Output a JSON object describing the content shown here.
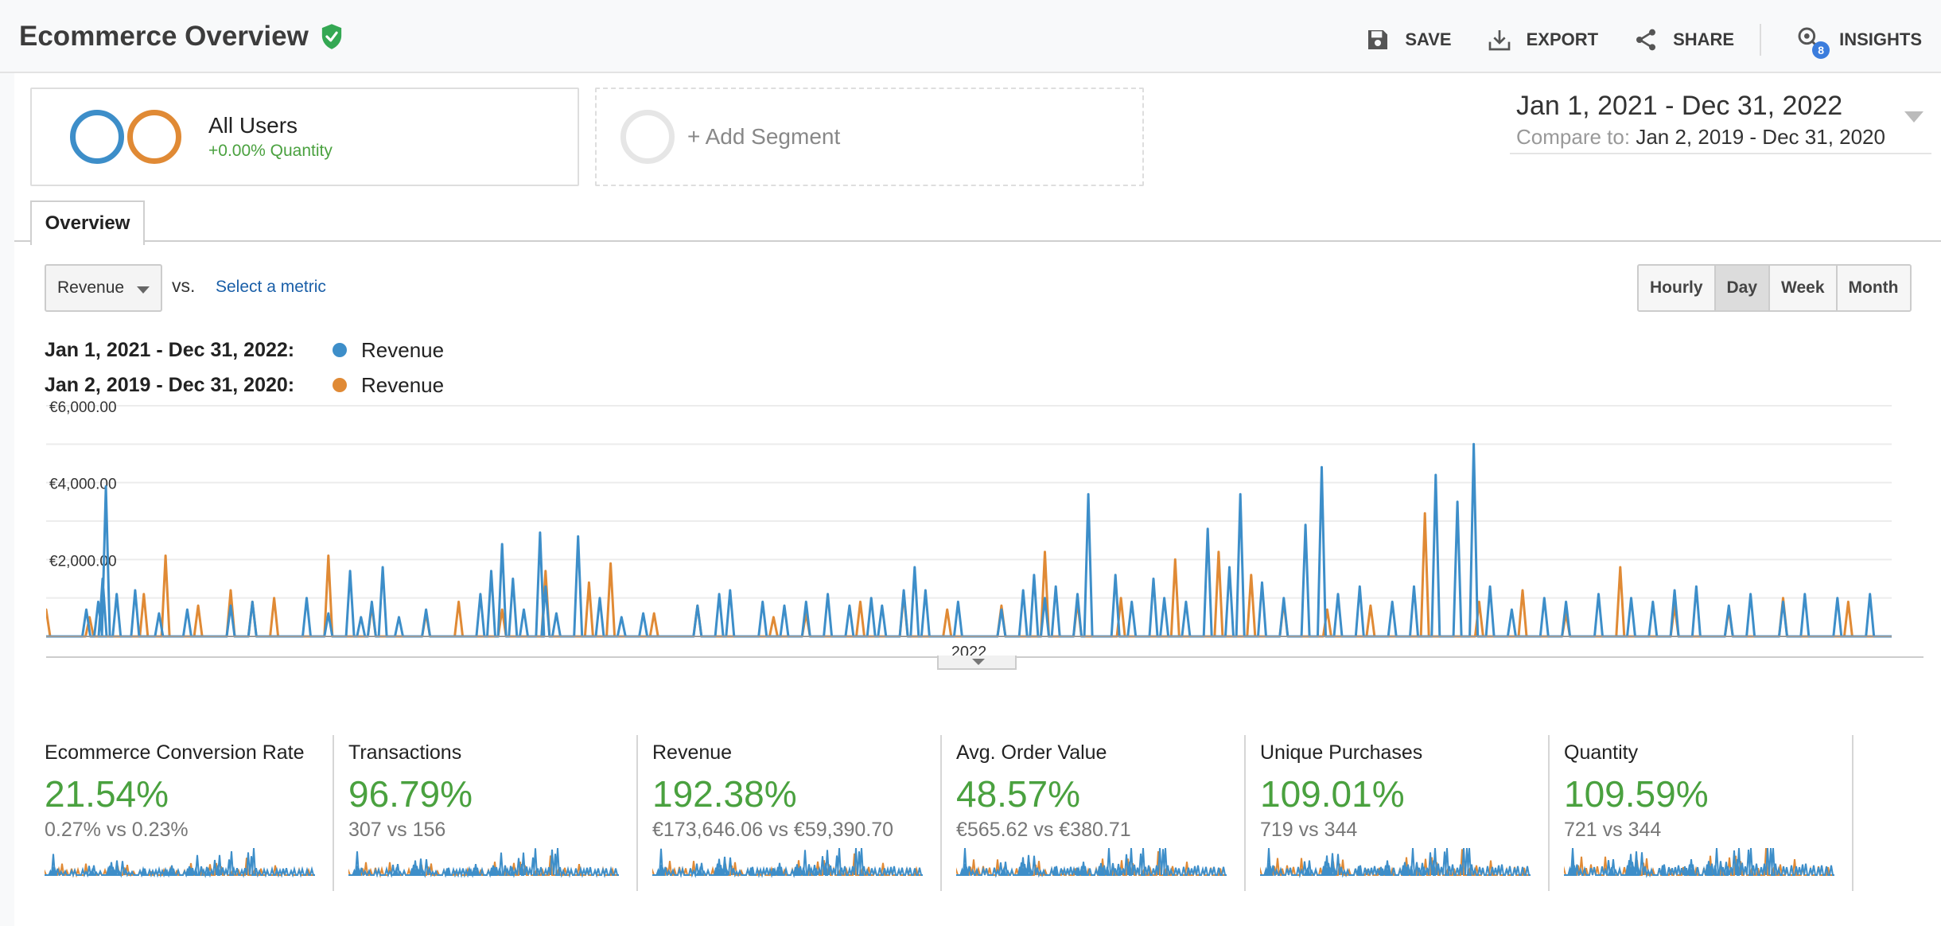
{
  "header": {
    "title": "Ecommerce Overview",
    "actions": [
      {
        "label": "SAVE",
        "icon": "save-icon"
      },
      {
        "label": "EXPORT",
        "icon": "export-icon"
      },
      {
        "label": "SHARE",
        "icon": "share-icon"
      },
      {
        "label": "INSIGHTS",
        "icon": "insights-icon",
        "badge": "8"
      }
    ]
  },
  "segments": {
    "active": {
      "name": "All Users",
      "sub": "+0.00% Quantity"
    },
    "add_label": "+ Add Segment"
  },
  "date_range": {
    "main": "Jan 1, 2021 - Dec 31, 2022",
    "compare_label": "Compare to:",
    "compare_value": "Jan 2, 2019 - Dec 31, 2020"
  },
  "tabs": [
    {
      "label": "Overview"
    }
  ],
  "controls": {
    "metric": "Revenue",
    "vs": "vs.",
    "select_metric": "Select a metric",
    "granularity": [
      "Hourly",
      "Day",
      "Week",
      "Month"
    ],
    "granularity_active": "Day"
  },
  "legend": [
    {
      "range": "Jan 1, 2021 - Dec 31, 2022:",
      "series": "Revenue",
      "color": "#3d8ec9"
    },
    {
      "range": "Jan 2, 2019 - Dec 31, 2020:",
      "series": "Revenue",
      "color": "#e08a35"
    }
  ],
  "colors": {
    "primary": "#3d8ec9",
    "compare": "#e08a35",
    "positive": "#4aa13f"
  },
  "chart_data": {
    "type": "line",
    "y_ticks": [
      "€6,000.00",
      "€4,000.00",
      "€2,000.00"
    ],
    "ylim": [
      0,
      6000
    ],
    "x_tick_labels": [
      "2022"
    ],
    "series": [
      {
        "name": "Revenue",
        "color": "#3d8ec9",
        "peaks": [
          [
            0.037,
            700
          ],
          [
            0.048,
            900
          ],
          [
            0.052,
            1500
          ],
          [
            0.055,
            3900
          ],
          [
            0.065,
            1100
          ],
          [
            0.082,
            1200
          ],
          [
            0.104,
            600
          ],
          [
            0.13,
            700
          ],
          [
            0.17,
            800
          ],
          [
            0.19,
            900
          ],
          [
            0.24,
            1000
          ],
          [
            0.26,
            600
          ],
          [
            0.28,
            1700
          ],
          [
            0.29,
            500
          ],
          [
            0.3,
            900
          ],
          [
            0.31,
            1800
          ],
          [
            0.325,
            500
          ],
          [
            0.35,
            700
          ],
          [
            0.4,
            1100
          ],
          [
            0.41,
            1700
          ],
          [
            0.42,
            2400
          ],
          [
            0.43,
            1500
          ],
          [
            0.44,
            700
          ],
          [
            0.455,
            2700
          ],
          [
            0.46,
            1300
          ],
          [
            0.47,
            600
          ],
          [
            0.49,
            2600
          ],
          [
            0.51,
            1000
          ],
          [
            0.53,
            500
          ],
          [
            0.55,
            600
          ],
          [
            0.6,
            800
          ],
          [
            0.62,
            1100
          ],
          [
            0.63,
            1200
          ],
          [
            0.66,
            900
          ],
          [
            0.68,
            800
          ],
          [
            0.7,
            900
          ],
          [
            0.72,
            1100
          ],
          [
            0.74,
            800
          ],
          [
            0.76,
            1000
          ],
          [
            0.77,
            800
          ],
          [
            0.79,
            1200
          ],
          [
            0.8,
            1800
          ],
          [
            0.81,
            1200
          ],
          [
            0.84,
            900
          ],
          [
            0.88,
            700
          ],
          [
            0.9,
            1200
          ],
          [
            0.91,
            1600
          ],
          [
            0.92,
            1000
          ],
          [
            0.93,
            1300
          ],
          [
            0.95,
            1100
          ],
          [
            0.96,
            3700
          ],
          [
            0.985,
            1600
          ],
          [
            1.0,
            900
          ],
          [
            1.02,
            1500
          ],
          [
            1.03,
            1000
          ],
          [
            1.05,
            900
          ],
          [
            1.07,
            2800
          ],
          [
            1.09,
            1800
          ],
          [
            1.1,
            3700
          ],
          [
            1.12,
            1400
          ],
          [
            1.14,
            1000
          ],
          [
            1.16,
            2900
          ],
          [
            1.175,
            4400
          ],
          [
            1.19,
            1100
          ],
          [
            1.21,
            1300
          ],
          [
            1.24,
            900
          ],
          [
            1.26,
            1300
          ],
          [
            1.28,
            4200
          ],
          [
            1.3,
            3500
          ],
          [
            1.315,
            5000
          ],
          [
            1.33,
            1300
          ],
          [
            1.35,
            700
          ],
          [
            1.38,
            1000
          ],
          [
            1.4,
            900
          ],
          [
            1.43,
            1100
          ],
          [
            1.46,
            1000
          ],
          [
            1.48,
            900
          ],
          [
            1.5,
            1200
          ],
          [
            1.52,
            1300
          ],
          [
            1.55,
            800
          ],
          [
            1.57,
            1100
          ],
          [
            1.6,
            900
          ],
          [
            1.62,
            1100
          ],
          [
            1.65,
            1000
          ],
          [
            1.68,
            1100
          ]
        ]
      },
      {
        "name": "Revenue",
        "color": "#e08a35",
        "peaks": [
          [
            0.0,
            700
          ],
          [
            0.04,
            500
          ],
          [
            0.09,
            1100
          ],
          [
            0.11,
            2100
          ],
          [
            0.14,
            800
          ],
          [
            0.17,
            1200
          ],
          [
            0.19,
            900
          ],
          [
            0.21,
            1000
          ],
          [
            0.26,
            2100
          ],
          [
            0.3,
            800
          ],
          [
            0.35,
            600
          ],
          [
            0.38,
            900
          ],
          [
            0.42,
            700
          ],
          [
            0.46,
            1700
          ],
          [
            0.5,
            1400
          ],
          [
            0.52,
            1900
          ],
          [
            0.56,
            600
          ],
          [
            0.6,
            800
          ],
          [
            0.67,
            500
          ],
          [
            0.7,
            600
          ],
          [
            0.75,
            900
          ],
          [
            0.79,
            1100
          ],
          [
            0.83,
            700
          ],
          [
            0.88,
            800
          ],
          [
            0.92,
            2200
          ],
          [
            0.95,
            900
          ],
          [
            0.99,
            1000
          ],
          [
            1.04,
            2000
          ],
          [
            1.08,
            2200
          ],
          [
            1.11,
            1600
          ],
          [
            1.14,
            900
          ],
          [
            1.18,
            700
          ],
          [
            1.22,
            800
          ],
          [
            1.27,
            3200
          ],
          [
            1.32,
            900
          ],
          [
            1.36,
            1200
          ],
          [
            1.4,
            600
          ],
          [
            1.45,
            1800
          ],
          [
            1.5,
            800
          ],
          [
            1.55,
            700
          ],
          [
            1.6,
            1000
          ],
          [
            1.66,
            900
          ]
        ]
      }
    ],
    "xdomain": [
      0,
      1.7
    ]
  },
  "summary_metrics": [
    {
      "title": "Ecommerce Conversion Rate",
      "pct": "21.54%",
      "compare": "0.27% vs 0.23%"
    },
    {
      "title": "Transactions",
      "pct": "96.79%",
      "compare": "307 vs 156"
    },
    {
      "title": "Revenue",
      "pct": "192.38%",
      "compare": "€173,646.06 vs €59,390.70"
    },
    {
      "title": "Avg. Order Value",
      "pct": "48.57%",
      "compare": "€565.62 vs €380.71"
    },
    {
      "title": "Unique Purchases",
      "pct": "109.01%",
      "compare": "719 vs 344"
    },
    {
      "title": "Quantity",
      "pct": "109.59%",
      "compare": "721 vs 344"
    }
  ]
}
